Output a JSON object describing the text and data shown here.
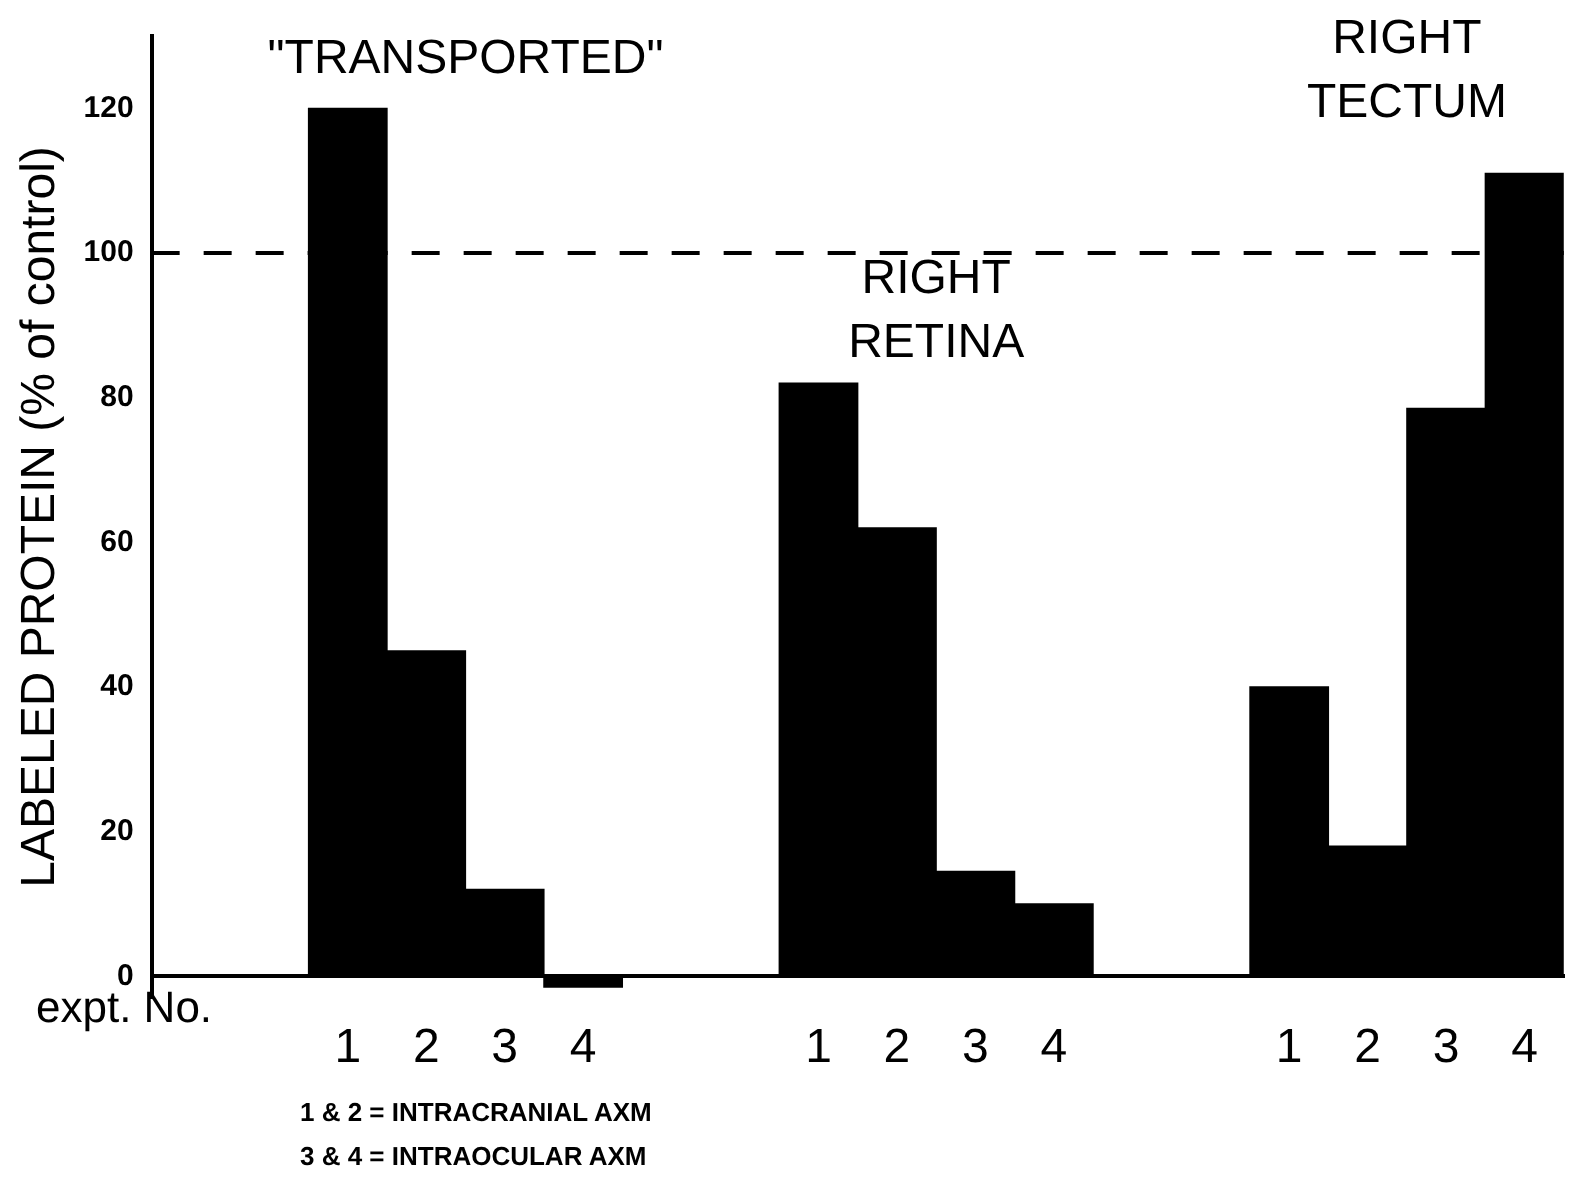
{
  "chart_data": {
    "type": "bar",
    "ylabel": "LABELED PROTEIN (% of control)",
    "xlabel": "expt. No.",
    "categories": [
      null,
      null,
      "1",
      "2",
      "3",
      "4",
      null,
      null,
      "1",
      "2",
      "3",
      "4",
      null,
      null,
      "1",
      "2",
      "3",
      "4"
    ],
    "values": [
      null,
      null,
      120,
      45,
      12,
      -1.5,
      null,
      null,
      82,
      62,
      14.5,
      10,
      null,
      null,
      40,
      18,
      78.5,
      111
    ],
    "color": "#000000",
    "ylim": [
      -3,
      130
    ],
    "yticks": [
      0,
      20,
      40,
      60,
      80,
      100,
      120
    ],
    "grid": false,
    "legend": false,
    "ref_lines": [
      {
        "axis": "y",
        "value": 100,
        "line_style": "dashed",
        "color": "#000000"
      }
    ],
    "annotations": [
      "\"TRANSPORTED\"",
      "RIGHT RETINA",
      "RIGHT TECTUM",
      "1 & 2 = INTRACRANIAL AXM",
      "3 & 4 = INTRAOCULAR AXM"
    ]
  }
}
